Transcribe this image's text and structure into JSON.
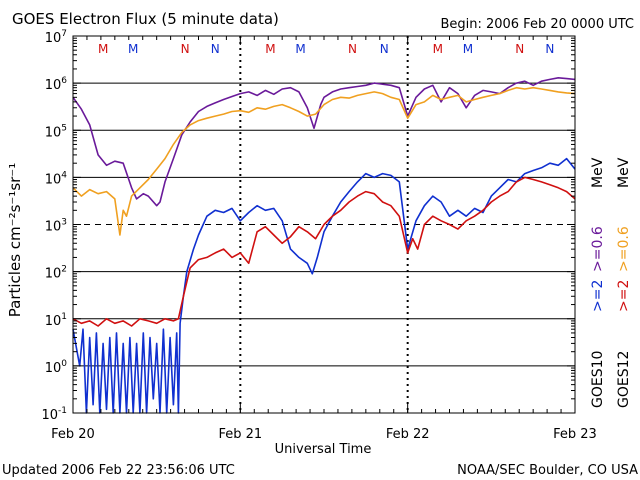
{
  "chart_data": {
    "type": "line",
    "title": "GOES Electron Flux (5 minute data)",
    "begin_label": "Begin: 2006 Feb 20 0000 UTC",
    "xlabel": "Universal Time",
    "ylabel": "Particles cm⁻²s⁻¹sr⁻¹",
    "footer_left": "Updated 2006 Feb 22 23:56:06 UTC",
    "footer_right": "NOAA/SEC Boulder, CO USA",
    "y_scale": "log",
    "ylim": [
      0.1,
      10000000
    ],
    "xlim": [
      0,
      3
    ],
    "x_ticks": [
      {
        "value": 0,
        "label": "Feb 20"
      },
      {
        "value": 1,
        "label": "Feb 21"
      },
      {
        "value": 2,
        "label": "Feb 22"
      },
      {
        "value": 3,
        "label": "Feb 23"
      }
    ],
    "y_tick_labels": [
      {
        "base": "10",
        "exp": "-1",
        "value": 0.1
      },
      {
        "base": "10",
        "exp": "0",
        "value": 1
      },
      {
        "base": "10",
        "exp": "1",
        "value": 10
      },
      {
        "base": "10",
        "exp": "2",
        "value": 100
      },
      {
        "base": "10",
        "exp": "3",
        "value": 1000
      },
      {
        "base": "10",
        "exp": "4",
        "value": 10000
      },
      {
        "base": "10",
        "exp": "5",
        "value": 100000
      },
      {
        "base": "10",
        "exp": "6",
        "value": 1000000
      },
      {
        "base": "10",
        "exp": "7",
        "value": 10000000
      }
    ],
    "solid_gridlines": [
      1,
      10,
      100,
      10000,
      100000,
      1000000
    ],
    "dashed_gridlines": [
      1000
    ],
    "day_dividers": [
      1,
      2
    ],
    "markers": [
      {
        "label": "M",
        "x": 0.18,
        "color": "#d01010"
      },
      {
        "label": "M",
        "x": 0.36,
        "color": "#1030d0"
      },
      {
        "label": "N",
        "x": 0.67,
        "color": "#d01010"
      },
      {
        "label": "N",
        "x": 0.85,
        "color": "#1030d0"
      },
      {
        "label": "M",
        "x": 1.18,
        "color": "#d01010"
      },
      {
        "label": "M",
        "x": 1.36,
        "color": "#1030d0"
      },
      {
        "label": "N",
        "x": 1.67,
        "color": "#d01010"
      },
      {
        "label": "N",
        "x": 1.86,
        "color": "#1030d0"
      },
      {
        "label": "M",
        "x": 2.18,
        "color": "#d01010"
      },
      {
        "label": "M",
        "x": 2.36,
        "color": "#1030d0"
      },
      {
        "label": "N",
        "x": 2.67,
        "color": "#d01010"
      },
      {
        "label": "N",
        "x": 2.85,
        "color": "#1030d0"
      }
    ],
    "legend": {
      "satellites": [
        {
          "name": "GOES10",
          "color": "#000000"
        },
        {
          "name": "GOES12",
          "color": "#000000"
        }
      ],
      "energies": [
        {
          "label": ">=2",
          "color": "#1030d0"
        },
        {
          "label": ">=0.6",
          "color": "#6a1a9a"
        },
        {
          "label": ">=2",
          "color": "#d01010"
        },
        {
          "label": ">=0.6",
          "color": "#f0a020"
        }
      ],
      "unit": "MeV"
    },
    "series": [
      {
        "color": "#6a1a9a",
        "points": [
          [
            0,
            500000
          ],
          [
            0.05,
            280000
          ],
          [
            0.1,
            130000
          ],
          [
            0.15,
            30000
          ],
          [
            0.2,
            18000
          ],
          [
            0.25,
            22000
          ],
          [
            0.3,
            20000
          ],
          [
            0.35,
            6000
          ],
          [
            0.38,
            3500
          ],
          [
            0.42,
            4500
          ],
          [
            0.45,
            4000
          ],
          [
            0.5,
            2500
          ],
          [
            0.52,
            3000
          ],
          [
            0.55,
            8000
          ],
          [
            0.6,
            25000
          ],
          [
            0.65,
            80000
          ],
          [
            0.7,
            150000
          ],
          [
            0.75,
            250000
          ],
          [
            0.8,
            320000
          ],
          [
            0.85,
            380000
          ],
          [
            0.9,
            450000
          ],
          [
            0.95,
            520000
          ],
          [
            1.0,
            600000
          ],
          [
            1.05,
            650000
          ],
          [
            1.1,
            550000
          ],
          [
            1.15,
            700000
          ],
          [
            1.2,
            580000
          ],
          [
            1.25,
            750000
          ],
          [
            1.3,
            800000
          ],
          [
            1.35,
            650000
          ],
          [
            1.4,
            300000
          ],
          [
            1.44,
            110000
          ],
          [
            1.48,
            350000
          ],
          [
            1.5,
            500000
          ],
          [
            1.55,
            650000
          ],
          [
            1.6,
            750000
          ],
          [
            1.65,
            800000
          ],
          [
            1.7,
            850000
          ],
          [
            1.75,
            900000
          ],
          [
            1.8,
            1000000
          ],
          [
            1.85,
            950000
          ],
          [
            1.9,
            900000
          ],
          [
            1.95,
            800000
          ],
          [
            2.0,
            200000
          ],
          [
            2.05,
            500000
          ],
          [
            2.1,
            750000
          ],
          [
            2.15,
            900000
          ],
          [
            2.2,
            400000
          ],
          [
            2.25,
            800000
          ],
          [
            2.3,
            600000
          ],
          [
            2.35,
            300000
          ],
          [
            2.4,
            550000
          ],
          [
            2.45,
            700000
          ],
          [
            2.5,
            650000
          ],
          [
            2.55,
            600000
          ],
          [
            2.6,
            800000
          ],
          [
            2.65,
            1000000
          ],
          [
            2.7,
            1100000
          ],
          [
            2.75,
            900000
          ],
          [
            2.8,
            1100000
          ],
          [
            2.85,
            1200000
          ],
          [
            2.9,
            1300000
          ],
          [
            2.95,
            1250000
          ],
          [
            3.0,
            1200000
          ]
        ]
      },
      {
        "color": "#f0a020",
        "points": [
          [
            0,
            6000
          ],
          [
            0.05,
            4000
          ],
          [
            0.1,
            5500
          ],
          [
            0.15,
            4500
          ],
          [
            0.2,
            5000
          ],
          [
            0.25,
            3500
          ],
          [
            0.28,
            600
          ],
          [
            0.3,
            2000
          ],
          [
            0.32,
            1500
          ],
          [
            0.35,
            4000
          ],
          [
            0.4,
            6000
          ],
          [
            0.45,
            9000
          ],
          [
            0.5,
            15000
          ],
          [
            0.55,
            25000
          ],
          [
            0.6,
            50000
          ],
          [
            0.65,
            90000
          ],
          [
            0.7,
            130000
          ],
          [
            0.75,
            160000
          ],
          [
            0.8,
            180000
          ],
          [
            0.85,
            200000
          ],
          [
            0.9,
            220000
          ],
          [
            0.95,
            250000
          ],
          [
            1.0,
            260000
          ],
          [
            1.05,
            240000
          ],
          [
            1.1,
            300000
          ],
          [
            1.15,
            280000
          ],
          [
            1.2,
            320000
          ],
          [
            1.25,
            350000
          ],
          [
            1.3,
            300000
          ],
          [
            1.35,
            250000
          ],
          [
            1.4,
            200000
          ],
          [
            1.45,
            220000
          ],
          [
            1.5,
            350000
          ],
          [
            1.55,
            450000
          ],
          [
            1.6,
            500000
          ],
          [
            1.65,
            480000
          ],
          [
            1.7,
            550000
          ],
          [
            1.75,
            600000
          ],
          [
            1.8,
            650000
          ],
          [
            1.85,
            600000
          ],
          [
            1.9,
            500000
          ],
          [
            1.95,
            450000
          ],
          [
            2.0,
            180000
          ],
          [
            2.05,
            350000
          ],
          [
            2.1,
            400000
          ],
          [
            2.15,
            550000
          ],
          [
            2.2,
            450000
          ],
          [
            2.25,
            500000
          ],
          [
            2.3,
            550000
          ],
          [
            2.35,
            400000
          ],
          [
            2.4,
            450000
          ],
          [
            2.45,
            500000
          ],
          [
            2.5,
            550000
          ],
          [
            2.55,
            600000
          ],
          [
            2.6,
            700000
          ],
          [
            2.65,
            800000
          ],
          [
            2.7,
            750000
          ],
          [
            2.75,
            800000
          ],
          [
            2.8,
            750000
          ],
          [
            2.85,
            700000
          ],
          [
            2.9,
            650000
          ],
          [
            2.95,
            620000
          ],
          [
            3.0,
            600000
          ]
        ]
      },
      {
        "color": "#1030d0",
        "points": [
          [
            0,
            6
          ],
          [
            0.04,
            1
          ],
          [
            0.06,
            6
          ],
          [
            0.08,
            0.1
          ],
          [
            0.1,
            4
          ],
          [
            0.12,
            0.15
          ],
          [
            0.14,
            5
          ],
          [
            0.16,
            0.1
          ],
          [
            0.18,
            3
          ],
          [
            0.2,
            0.12
          ],
          [
            0.22,
            4
          ],
          [
            0.24,
            0.1
          ],
          [
            0.26,
            5
          ],
          [
            0.28,
            0.1
          ],
          [
            0.3,
            3
          ],
          [
            0.32,
            0.1
          ],
          [
            0.34,
            4
          ],
          [
            0.36,
            0.1
          ],
          [
            0.38,
            3
          ],
          [
            0.4,
            0.1
          ],
          [
            0.42,
            5
          ],
          [
            0.44,
            0.1
          ],
          [
            0.46,
            4
          ],
          [
            0.48,
            0.2
          ],
          [
            0.5,
            3
          ],
          [
            0.52,
            0.1
          ],
          [
            0.54,
            6
          ],
          [
            0.56,
            0.1
          ],
          [
            0.58,
            4
          ],
          [
            0.6,
            0.15
          ],
          [
            0.62,
            5
          ],
          [
            0.63,
            0.1
          ],
          [
            0.64,
            8
          ],
          [
            0.66,
            30
          ],
          [
            0.68,
            100
          ],
          [
            0.72,
            300
          ],
          [
            0.75,
            600
          ],
          [
            0.8,
            1500
          ],
          [
            0.85,
            2000
          ],
          [
            0.9,
            1800
          ],
          [
            0.95,
            2200
          ],
          [
            1.0,
            1200
          ],
          [
            1.05,
            1800
          ],
          [
            1.1,
            2500
          ],
          [
            1.15,
            2000
          ],
          [
            1.2,
            2200
          ],
          [
            1.25,
            1200
          ],
          [
            1.3,
            300
          ],
          [
            1.35,
            200
          ],
          [
            1.4,
            150
          ],
          [
            1.43,
            90
          ],
          [
            1.46,
            200
          ],
          [
            1.5,
            700
          ],
          [
            1.55,
            1500
          ],
          [
            1.6,
            3000
          ],
          [
            1.65,
            5000
          ],
          [
            1.7,
            8000
          ],
          [
            1.75,
            12000
          ],
          [
            1.8,
            10000
          ],
          [
            1.85,
            12000
          ],
          [
            1.9,
            11000
          ],
          [
            1.95,
            8000
          ],
          [
            2.0,
            300
          ],
          [
            2.05,
            1200
          ],
          [
            2.1,
            2500
          ],
          [
            2.15,
            4000
          ],
          [
            2.2,
            3000
          ],
          [
            2.25,
            1500
          ],
          [
            2.3,
            2000
          ],
          [
            2.35,
            1500
          ],
          [
            2.4,
            2200
          ],
          [
            2.45,
            1800
          ],
          [
            2.5,
            4000
          ],
          [
            2.55,
            6000
          ],
          [
            2.6,
            9000
          ],
          [
            2.65,
            8000
          ],
          [
            2.7,
            12000
          ],
          [
            2.75,
            14000
          ],
          [
            2.8,
            16000
          ],
          [
            2.85,
            20000
          ],
          [
            2.9,
            18000
          ],
          [
            2.95,
            25000
          ],
          [
            3.0,
            15000
          ]
        ]
      },
      {
        "color": "#d01010",
        "points": [
          [
            0,
            10
          ],
          [
            0.05,
            8
          ],
          [
            0.1,
            9
          ],
          [
            0.15,
            7
          ],
          [
            0.2,
            10
          ],
          [
            0.25,
            8
          ],
          [
            0.3,
            9
          ],
          [
            0.35,
            7
          ],
          [
            0.4,
            10
          ],
          [
            0.45,
            9
          ],
          [
            0.5,
            8
          ],
          [
            0.55,
            10
          ],
          [
            0.6,
            9
          ],
          [
            0.63,
            10
          ],
          [
            0.66,
            30
          ],
          [
            0.7,
            120
          ],
          [
            0.75,
            180
          ],
          [
            0.8,
            200
          ],
          [
            0.85,
            250
          ],
          [
            0.9,
            300
          ],
          [
            0.95,
            200
          ],
          [
            1.0,
            250
          ],
          [
            1.05,
            150
          ],
          [
            1.1,
            700
          ],
          [
            1.15,
            900
          ],
          [
            1.2,
            600
          ],
          [
            1.25,
            400
          ],
          [
            1.3,
            550
          ],
          [
            1.35,
            900
          ],
          [
            1.4,
            700
          ],
          [
            1.45,
            500
          ],
          [
            1.5,
            1000
          ],
          [
            1.55,
            1500
          ],
          [
            1.6,
            2000
          ],
          [
            1.65,
            3000
          ],
          [
            1.7,
            4000
          ],
          [
            1.75,
            5000
          ],
          [
            1.8,
            4500
          ],
          [
            1.85,
            3000
          ],
          [
            1.9,
            2500
          ],
          [
            1.95,
            1500
          ],
          [
            2.0,
            250
          ],
          [
            2.03,
            500
          ],
          [
            2.06,
            300
          ],
          [
            2.1,
            1000
          ],
          [
            2.15,
            1500
          ],
          [
            2.2,
            1200
          ],
          [
            2.25,
            1000
          ],
          [
            2.3,
            800
          ],
          [
            2.35,
            1200
          ],
          [
            2.4,
            1500
          ],
          [
            2.45,
            2000
          ],
          [
            2.5,
            3000
          ],
          [
            2.55,
            4000
          ],
          [
            2.6,
            5000
          ],
          [
            2.65,
            8000
          ],
          [
            2.7,
            10000
          ],
          [
            2.75,
            9000
          ],
          [
            2.8,
            8000
          ],
          [
            2.85,
            7000
          ],
          [
            2.9,
            6000
          ],
          [
            2.95,
            5000
          ],
          [
            3.0,
            3500
          ]
        ]
      }
    ]
  }
}
